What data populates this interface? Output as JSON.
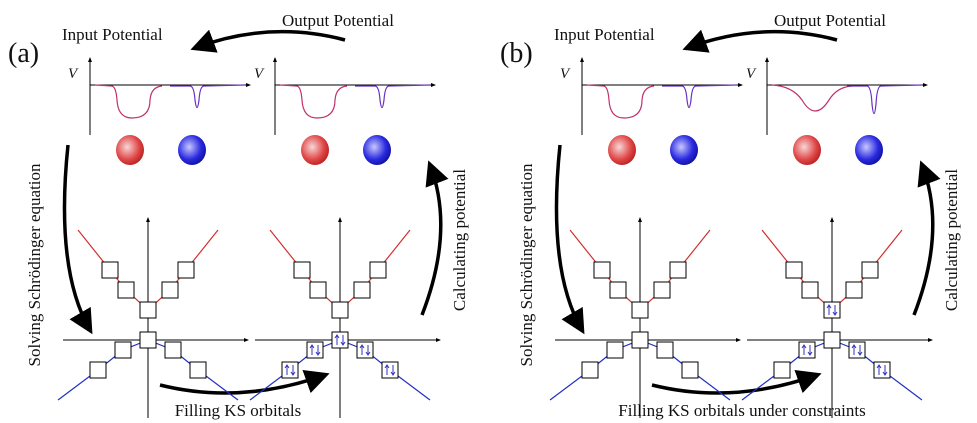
{
  "panels": [
    {
      "label": "(a)",
      "input": "Input Potential",
      "output": "Output Potential",
      "v_left": "V",
      "v_right": "V",
      "left_arrow": "Solving Schrödinger equation",
      "right_arrow": "Calculating potential",
      "bottom": "Filling KS orbitals"
    },
    {
      "label": "(b)",
      "input": "Input Potential",
      "output": "Output Potential",
      "v_left": "V",
      "v_right": "V",
      "left_arrow": "Solving Schrödinger equation",
      "right_arrow": "Calculating potential",
      "bottom": "Filling KS orbitals under constraints"
    }
  ]
}
